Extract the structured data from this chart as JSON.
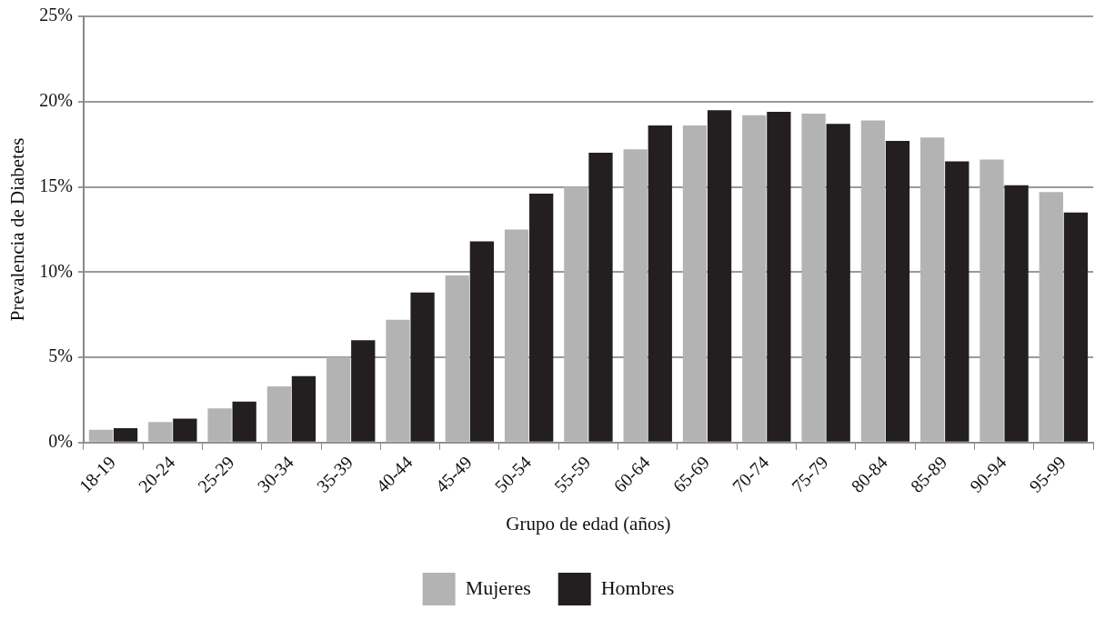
{
  "chart_data": {
    "type": "bar",
    "xlabel": "Grupo de edad (años)",
    "ylabel": "Prevalencia de Diabetes",
    "categories": [
      "18-19",
      "20-24",
      "25-29",
      "30-34",
      "35-39",
      "40-44",
      "45-49",
      "50-54",
      "55-59",
      "60-64",
      "65-69",
      "70-74",
      "75-79",
      "80-84",
      "85-89",
      "90-94",
      "95-99"
    ],
    "series": [
      {
        "name": "Mujeres",
        "color": "#b3b3b3",
        "values": [
          0.75,
          1.2,
          2.0,
          3.3,
          5.0,
          7.2,
          9.8,
          12.5,
          15.0,
          17.2,
          18.6,
          19.2,
          19.3,
          18.9,
          17.9,
          16.6,
          14.7
        ]
      },
      {
        "name": "Hombres",
        "color": "#231f20",
        "values": [
          0.85,
          1.4,
          2.4,
          3.9,
          6.0,
          8.8,
          11.8,
          14.6,
          17.0,
          18.6,
          19.5,
          19.4,
          18.7,
          17.7,
          16.5,
          15.1,
          13.5
        ]
      }
    ],
    "ylim": [
      0,
      25
    ],
    "yticks": [
      {
        "value": 0,
        "label": "0%"
      },
      {
        "value": 5,
        "label": "5%"
      },
      {
        "value": 10,
        "label": "10%"
      },
      {
        "value": 15,
        "label": "15%"
      },
      {
        "value": 20,
        "label": "20%"
      },
      {
        "value": 25,
        "label": "25%"
      }
    ],
    "grid": "y",
    "legend": "bottom"
  }
}
